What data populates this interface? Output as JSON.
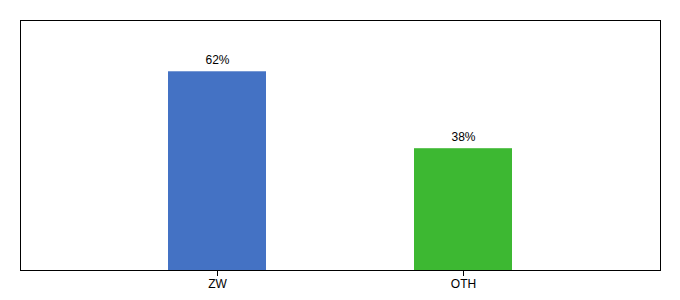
{
  "chart_data": {
    "type": "bar",
    "categories": [
      "ZW",
      "OTH"
    ],
    "values": [
      62,
      38
    ],
    "value_labels": [
      "62%",
      "38%"
    ],
    "colors": [
      "#4472c4",
      "#3db832"
    ],
    "data_labels": true,
    "ylim": [
      0,
      78
    ],
    "yticks": [],
    "tick_labels": "x"
  }
}
